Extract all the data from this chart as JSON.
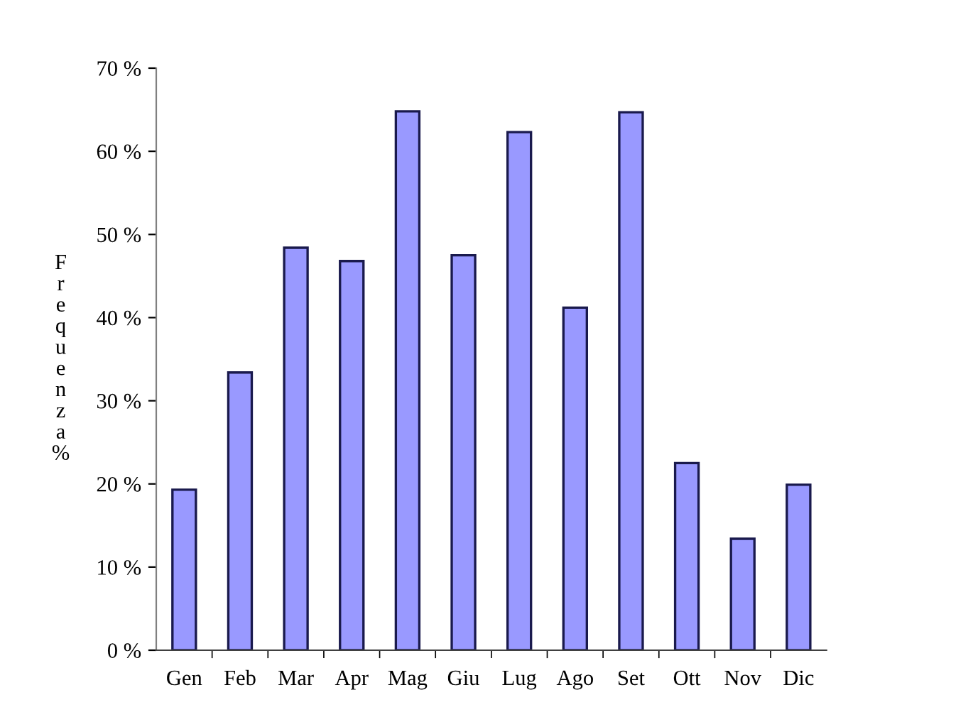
{
  "chart_data": {
    "type": "bar",
    "ylabel": "Frequenza%",
    "categories": [
      "Gen",
      "Feb",
      "Mar",
      "Apr",
      "Mag",
      "Giu",
      "Lug",
      "Ago",
      "Set",
      "Ott",
      "Nov",
      "Dic"
    ],
    "values": [
      19.3,
      33.4,
      48.4,
      46.8,
      64.8,
      47.5,
      62.3,
      41.2,
      64.7,
      22.5,
      13.4,
      19.9
    ],
    "color": "#9999ff",
    "ylim": [
      0,
      70
    ],
    "yticks": [
      {
        "value": 0,
        "label": "0 %"
      },
      {
        "value": 10,
        "label": "10 %"
      },
      {
        "value": 20,
        "label": "20 %"
      },
      {
        "value": 30,
        "label": "30 %"
      },
      {
        "value": 40,
        "label": "40 %"
      },
      {
        "value": 50,
        "label": "50 %"
      },
      {
        "value": 60,
        "label": "60 %"
      },
      {
        "value": 70,
        "label": "70 %"
      }
    ],
    "grid": false,
    "legend": false
  }
}
